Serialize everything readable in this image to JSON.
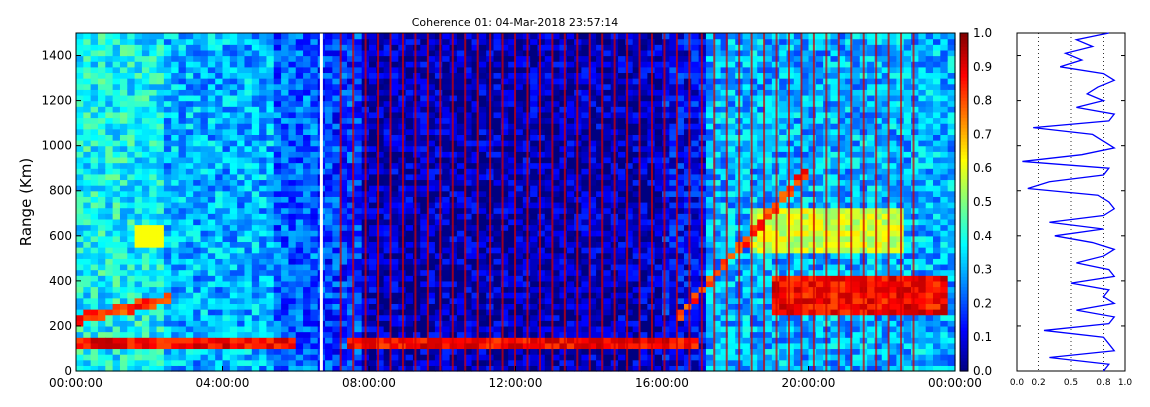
{
  "chart_data": [
    {
      "type": "heatmap",
      "title": "Coherence 01: 04-Mar-2018 23:57:14",
      "ylabel": "Range (Km)",
      "xlabel": "",
      "x_ticks": [
        "00:00:00",
        "04:00:00",
        "08:00:00",
        "12:00:00",
        "16:00:00",
        "20:00:00",
        "00:00:00"
      ],
      "x_range_hours": [
        0,
        24
      ],
      "y_ticks": [
        0,
        200,
        400,
        600,
        800,
        1000,
        1200,
        1400
      ],
      "ylim": [
        0,
        1500
      ],
      "colormap": "jet",
      "colorbar": {
        "ticks": [
          "0.0",
          "0.1",
          "0.2",
          "0.3",
          "0.4",
          "0.5",
          "0.6",
          "0.7",
          "0.8",
          "0.9",
          "1.0"
        ],
        "range": [
          0,
          1
        ]
      },
      "features": [
        {
          "name": "low-range echo",
          "start_hour": 0.0,
          "end_hour": 6.0,
          "range_km": 120,
          "value": 0.95
        },
        {
          "name": "low-range echo",
          "start_hour": 7.5,
          "end_hour": 17.0,
          "range_km": 130,
          "value": 0.95
        },
        {
          "name": "rising echo",
          "start_hour": 0.0,
          "end_hour": 2.5,
          "range_start_km": 230,
          "range_end_km": 320,
          "value": 0.9
        },
        {
          "name": "evening echo patch",
          "start_hour": 19.0,
          "end_hour": 23.8,
          "range_start_km": 240,
          "range_end_km": 420,
          "value": 0.95
        },
        {
          "name": "evening upper patch",
          "start_hour": 18.5,
          "end_hour": 22.5,
          "range_start_km": 520,
          "range_end_km": 720,
          "value": 0.65
        },
        {
          "name": "rising trace",
          "start_hour": 16.5,
          "end_hour": 20.0,
          "range_start_km": 250,
          "range_end_km": 900,
          "value": 0.9
        }
      ],
      "data_gap_hour": 6.7,
      "grid": false
    },
    {
      "type": "line",
      "x_ticks": [
        "0.0",
        "0.2",
        "0.5",
        "0.8",
        "1.0"
      ],
      "xlim": [
        0,
        1
      ],
      "ylim": [
        0,
        1500
      ],
      "gridlines_x": [
        0.2,
        0.5,
        0.8
      ],
      "series": [
        {
          "color": "#0000ff",
          "range_km": [
            1500,
            1470,
            1440,
            1410,
            1380,
            1350,
            1320,
            1290,
            1260,
            1230,
            1200,
            1170,
            1140,
            1110,
            1080,
            1050,
            1020,
            990,
            960,
            930,
            900,
            870,
            840,
            810,
            780,
            750,
            720,
            690,
            660,
            630,
            600,
            570,
            540,
            510,
            480,
            450,
            420,
            390,
            360,
            330,
            300,
            270,
            240,
            210,
            180,
            150,
            120,
            90,
            60,
            30,
            0
          ],
          "values": [
            0.85,
            0.55,
            0.7,
            0.45,
            0.6,
            0.4,
            0.8,
            0.9,
            0.75,
            0.65,
            0.8,
            0.55,
            0.9,
            0.85,
            0.15,
            0.7,
            0.8,
            0.9,
            0.6,
            0.05,
            0.85,
            0.8,
            0.3,
            0.1,
            0.75,
            0.85,
            0.9,
            0.8,
            0.3,
            0.8,
            0.35,
            0.7,
            0.9,
            0.8,
            0.55,
            0.85,
            0.9,
            0.5,
            0.85,
            0.8,
            0.9,
            0.55,
            0.9,
            0.85,
            0.25,
            0.8,
            0.85,
            0.9,
            0.3,
            0.85,
            0.8
          ]
        }
      ]
    }
  ],
  "colors": {
    "gap": "#ffffff",
    "axis": "#000000",
    "line": "#0000ff"
  }
}
